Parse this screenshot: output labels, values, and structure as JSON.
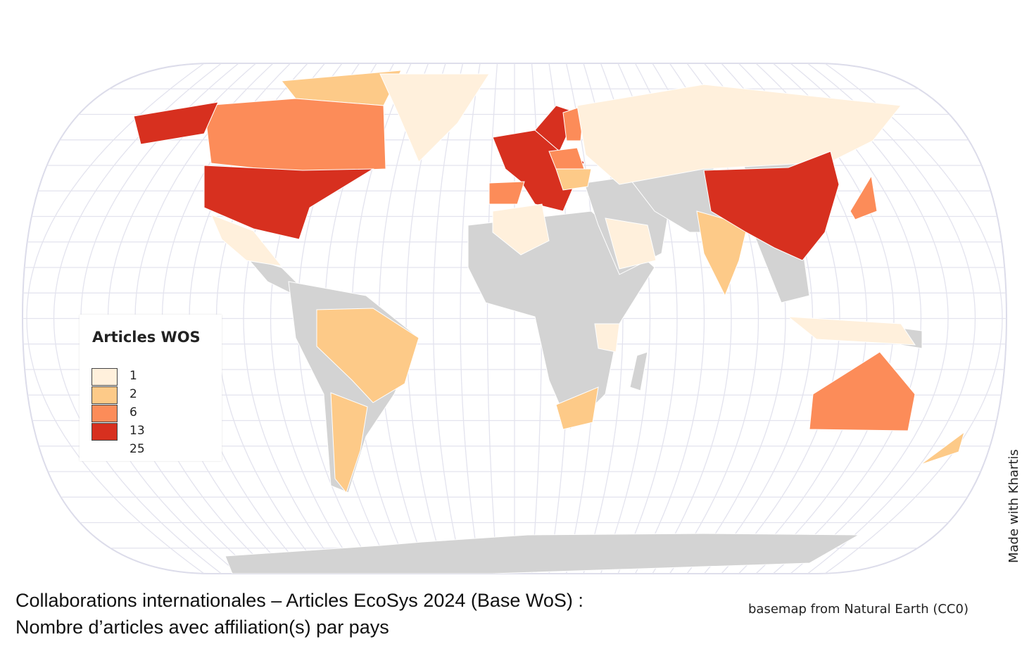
{
  "legend": {
    "title": "Articles WOS",
    "classes": [
      {
        "value": 1,
        "color": "#fff0dc"
      },
      {
        "value": 2,
        "color": "#fdca88"
      },
      {
        "value": 6,
        "color": "#fc8c59"
      },
      {
        "value": 13,
        "color": "#d7301f"
      },
      {
        "value": 25,
        "color": "#d7301f"
      }
    ]
  },
  "caption": {
    "lines": [
      "Collaborations internationales – Articles EcoSys 2024 (Base WoS) :",
      "Nombre d’articles avec affiliation(s) par pays"
    ]
  },
  "credits": {
    "basemap": "basemap from Natural Earth (CC0)",
    "made_with": "Made with Khartis"
  }
}
